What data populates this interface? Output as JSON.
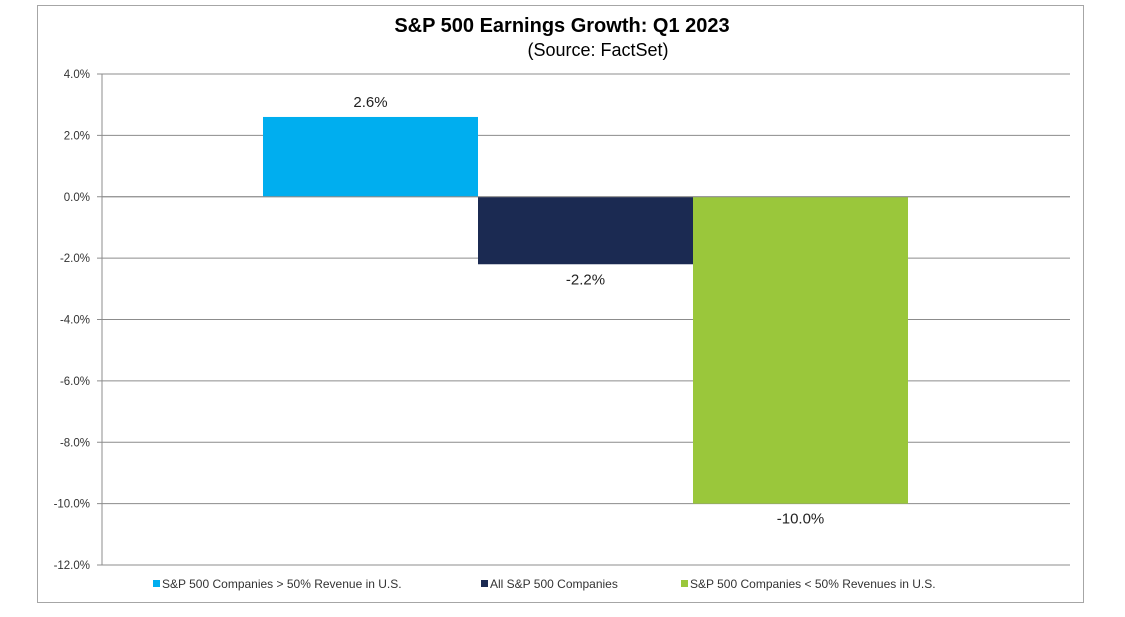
{
  "chart_data": {
    "type": "bar",
    "title": "S&P 500 Earnings Growth: Q1 2023",
    "subtitle": "(Source: FactSet)",
    "xlabel": "",
    "ylabel": "",
    "ylim": [
      -12.0,
      4.0
    ],
    "yticks": [
      4.0,
      2.0,
      0.0,
      -2.0,
      -4.0,
      -6.0,
      -8.0,
      -10.0,
      -12.0
    ],
    "ytick_labels": [
      "4.0%",
      "2.0%",
      "0.0%",
      "-2.0%",
      "-4.0%",
      "-6.0%",
      "-8.0%",
      "-10.0%",
      "-12.0%"
    ],
    "grid": true,
    "legend_position": "bottom",
    "series": [
      {
        "name": "S&P 500 Companies > 50% Revenue in U.S.",
        "value": 2.6,
        "label": "2.6%",
        "color": "#00AEEF"
      },
      {
        "name": "All S&P 500 Companies",
        "value": -2.2,
        "label": "-2.2%",
        "color": "#1B2A52"
      },
      {
        "name": "S&P 500 Companies < 50% Revenues in U.S.",
        "value": -10.0,
        "label": "-10.0%",
        "color": "#9AC73B"
      }
    ]
  }
}
